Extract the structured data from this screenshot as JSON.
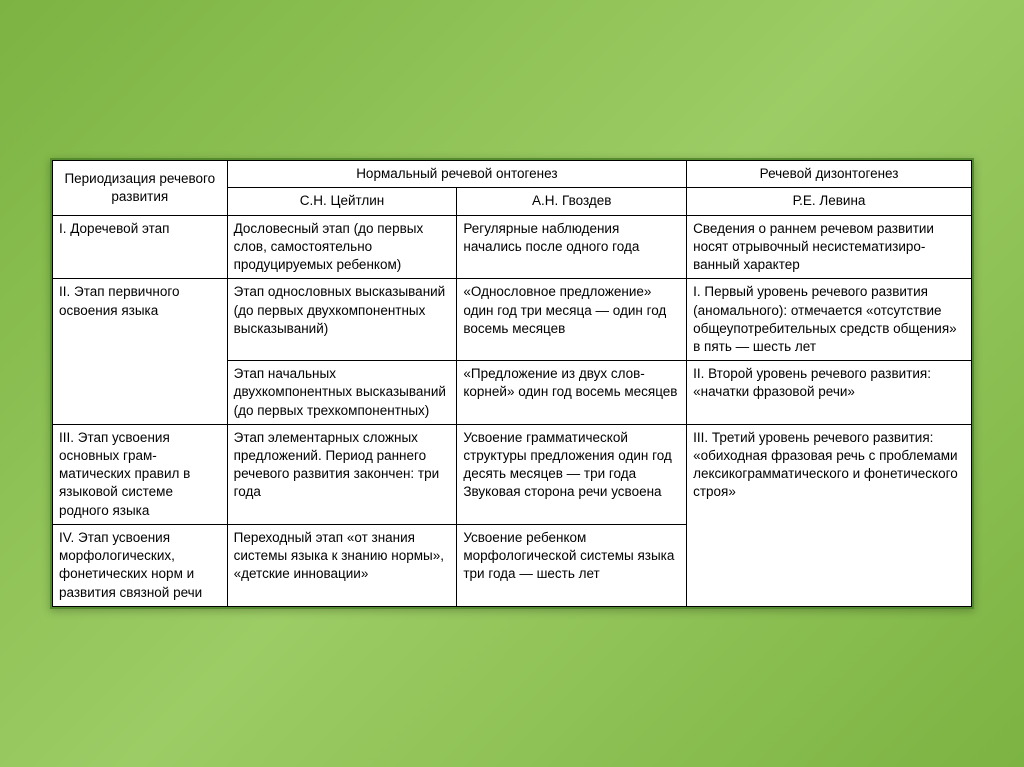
{
  "header": {
    "col1": "Периодизация речевого развития",
    "col2": "Нормальный речевой онтогенез",
    "col3": "Речевой дизонтогенез",
    "sub1": "С.Н. Цейтлин",
    "sub2": "А.Н. Гвоздев",
    "sub3": "Р.Е. Левина"
  },
  "rows": {
    "r1c1": "I. Доречевой этап",
    "r1c2": "Дословесный этап (до первых слов, самостоятельно продуцируемых ребенком)",
    "r1c3": "Регулярные наблюдения начались после одного года",
    "r1c4": "Сведения о раннем речевом развитии носят отрывочный несистематизиро­ванный характер",
    "r2c1": "II. Этап первич­ного освоения языка",
    "r2c2": "Этап однословных высказываний (до первых двух­компонентных вы­сказываний)",
    "r2c3": "«Однословное предложение» один год три меся­ца — один год во­семь месяцев",
    "r2c4": "I. Первый уровень речевого развития (аномального): от­мечается «отсутст­вие общеупотреби­тельных средств общения» в пять — шесть лет",
    "r2bc2": "Этап начальных двухкомпонентных высказываний (до первых трехкомпо­нентных)",
    "r2bc3": "«Предложение из двух слов-корней» один год восемь месяцев",
    "r2bc4": "II. Второй уровень речевого развития: «начатки фразовой речи»",
    "r3c1": "III. Этап усвоения основных грам­матических пра­вил в языковой системе родного языка",
    "r3c2": "Этап элементарных сложных предло­жений.\nПериод раннего речевого развития закончен: три года",
    "r3c3": "Усвоение граммати­ческой структуры предложения один год десять месяцев — три года Звуковая сторона речи усвоена",
    "r3c4": "III. Третий уровень речевого развития: «обиходная фразо­вая речь с пробле­мами лексикограм­матического и фонетического строя»",
    "r4c1": "IV. Этап усвоения морфологических, фонетических норм и развития связной речи",
    "r4c2": "Переходный этап «от знания системы языка к знанию нормы», «детские инновации»",
    "r4c3": "Усвоение ребенком морфологической системы языка три года — шесть лет",
    "r4c4": ""
  }
}
